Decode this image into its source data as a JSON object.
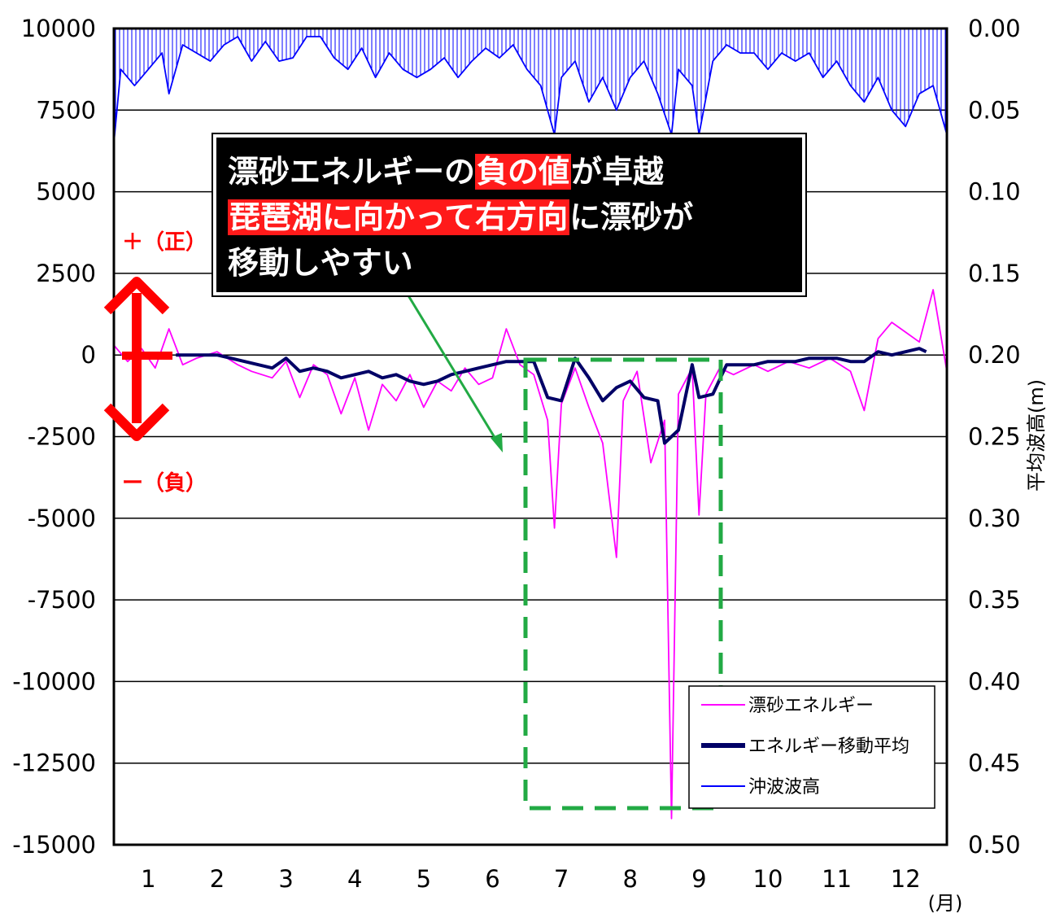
{
  "chart_data": {
    "type": "line",
    "x_ticks": [
      "1",
      "2",
      "3",
      "4",
      "5",
      "6",
      "7",
      "8",
      "9",
      "10",
      "11",
      "12"
    ],
    "x_unit": "(月)",
    "y_left_ticks": [
      "10000",
      "7500",
      "5000",
      "2500",
      "0",
      "-2500",
      "-5000",
      "-7500",
      "-10000",
      "-12500",
      "-15000"
    ],
    "y_left_range": [
      -15000,
      10000
    ],
    "y_right_ticks": [
      "0.00",
      "0.05",
      "0.10",
      "0.15",
      "0.20",
      "0.25",
      "0.30",
      "0.35",
      "0.40",
      "0.45",
      "0.50"
    ],
    "y_right_range": [
      0.5,
      0.0
    ],
    "y_right_label": "平均波高(m)",
    "grid": true,
    "legend_position": "bottom-right",
    "series": [
      {
        "name": "漂砂エネルギー",
        "color": "#ff00ff",
        "axis": "left",
        "points": [
          [
            0.5,
            300
          ],
          [
            0.7,
            -200
          ],
          [
            0.9,
            200
          ],
          [
            1.1,
            -400
          ],
          [
            1.3,
            800
          ],
          [
            1.5,
            -300
          ],
          [
            1.7,
            -100
          ],
          [
            2.0,
            100
          ],
          [
            2.3,
            -300
          ],
          [
            2.5,
            -500
          ],
          [
            2.8,
            -700
          ],
          [
            3.0,
            -200
          ],
          [
            3.2,
            -1300
          ],
          [
            3.4,
            -300
          ],
          [
            3.6,
            -600
          ],
          [
            3.8,
            -1800
          ],
          [
            4.0,
            -700
          ],
          [
            4.2,
            -2300
          ],
          [
            4.4,
            -900
          ],
          [
            4.6,
            -1400
          ],
          [
            4.8,
            -600
          ],
          [
            5.0,
            -1600
          ],
          [
            5.2,
            -800
          ],
          [
            5.4,
            -1100
          ],
          [
            5.6,
            -400
          ],
          [
            5.8,
            -900
          ],
          [
            6.0,
            -700
          ],
          [
            6.2,
            800
          ],
          [
            6.4,
            -300
          ],
          [
            6.6,
            -600
          ],
          [
            6.8,
            -2000
          ],
          [
            6.9,
            -5300
          ],
          [
            7.0,
            -1500
          ],
          [
            7.2,
            -400
          ],
          [
            7.4,
            -1600
          ],
          [
            7.6,
            -2700
          ],
          [
            7.8,
            -6200
          ],
          [
            7.9,
            -1400
          ],
          [
            8.1,
            -500
          ],
          [
            8.3,
            -3300
          ],
          [
            8.5,
            -2000
          ],
          [
            8.6,
            -14200
          ],
          [
            8.7,
            -1200
          ],
          [
            8.9,
            -400
          ],
          [
            9.0,
            -4900
          ],
          [
            9.1,
            -1200
          ],
          [
            9.3,
            -400
          ],
          [
            9.5,
            -600
          ],
          [
            9.8,
            -300
          ],
          [
            10.0,
            -500
          ],
          [
            10.3,
            -200
          ],
          [
            10.6,
            -400
          ],
          [
            10.9,
            -100
          ],
          [
            11.2,
            -500
          ],
          [
            11.4,
            -1700
          ],
          [
            11.6,
            500
          ],
          [
            11.8,
            1000
          ],
          [
            12.0,
            700
          ],
          [
            12.2,
            400
          ],
          [
            12.4,
            2000
          ],
          [
            12.6,
            -500
          ]
        ]
      },
      {
        "name": "エネルギー移動平均",
        "color": "#000066",
        "axis": "left",
        "points": [
          [
            1.4,
            0
          ],
          [
            1.6,
            0
          ],
          [
            1.8,
            0
          ],
          [
            2.0,
            0
          ],
          [
            2.2,
            -100
          ],
          [
            2.4,
            -200
          ],
          [
            2.6,
            -300
          ],
          [
            2.8,
            -400
          ],
          [
            3.0,
            -100
          ],
          [
            3.2,
            -500
          ],
          [
            3.4,
            -400
          ],
          [
            3.6,
            -500
          ],
          [
            3.8,
            -700
          ],
          [
            4.0,
            -600
          ],
          [
            4.2,
            -500
          ],
          [
            4.4,
            -700
          ],
          [
            4.6,
            -600
          ],
          [
            4.8,
            -800
          ],
          [
            5.0,
            -900
          ],
          [
            5.2,
            -800
          ],
          [
            5.4,
            -600
          ],
          [
            5.6,
            -500
          ],
          [
            5.8,
            -400
          ],
          [
            6.0,
            -300
          ],
          [
            6.2,
            -200
          ],
          [
            6.4,
            -200
          ],
          [
            6.6,
            -200
          ],
          [
            6.8,
            -1300
          ],
          [
            7.0,
            -1400
          ],
          [
            7.2,
            -100
          ],
          [
            7.4,
            -700
          ],
          [
            7.6,
            -1400
          ],
          [
            7.8,
            -1000
          ],
          [
            8.0,
            -800
          ],
          [
            8.2,
            -1300
          ],
          [
            8.4,
            -1400
          ],
          [
            8.5,
            -2700
          ],
          [
            8.7,
            -2300
          ],
          [
            8.9,
            -300
          ],
          [
            9.0,
            -1300
          ],
          [
            9.2,
            -1200
          ],
          [
            9.4,
            -300
          ],
          [
            9.6,
            -300
          ],
          [
            9.8,
            -300
          ],
          [
            10.0,
            -200
          ],
          [
            10.2,
            -200
          ],
          [
            10.4,
            -200
          ],
          [
            10.6,
            -100
          ],
          [
            10.8,
            -100
          ],
          [
            11.0,
            -100
          ],
          [
            11.2,
            -200
          ],
          [
            11.4,
            -200
          ],
          [
            11.6,
            100
          ],
          [
            11.8,
            0
          ],
          [
            12.0,
            100
          ],
          [
            12.2,
            200
          ],
          [
            12.3,
            100
          ]
        ]
      },
      {
        "name": "沖波波高",
        "color": "#0000ff",
        "axis": "right",
        "points": [
          [
            0.5,
            0.07
          ],
          [
            0.6,
            0.025
          ],
          [
            0.8,
            0.035
          ],
          [
            1.0,
            0.025
          ],
          [
            1.2,
            0.015
          ],
          [
            1.3,
            0.04
          ],
          [
            1.5,
            0.01
          ],
          [
            1.7,
            0.015
          ],
          [
            1.9,
            0.02
          ],
          [
            2.1,
            0.01
          ],
          [
            2.3,
            0.005
          ],
          [
            2.5,
            0.02
          ],
          [
            2.7,
            0.008
          ],
          [
            2.9,
            0.02
          ],
          [
            3.1,
            0.018
          ],
          [
            3.3,
            0.005
          ],
          [
            3.5,
            0.005
          ],
          [
            3.7,
            0.018
          ],
          [
            3.9,
            0.025
          ],
          [
            4.1,
            0.012
          ],
          [
            4.3,
            0.03
          ],
          [
            4.5,
            0.015
          ],
          [
            4.7,
            0.025
          ],
          [
            4.9,
            0.03
          ],
          [
            5.1,
            0.025
          ],
          [
            5.3,
            0.018
          ],
          [
            5.5,
            0.03
          ],
          [
            5.7,
            0.02
          ],
          [
            5.9,
            0.012
          ],
          [
            6.1,
            0.018
          ],
          [
            6.3,
            0.01
          ],
          [
            6.5,
            0.025
          ],
          [
            6.7,
            0.035
          ],
          [
            6.9,
            0.065
          ],
          [
            7.0,
            0.03
          ],
          [
            7.2,
            0.02
          ],
          [
            7.4,
            0.045
          ],
          [
            7.6,
            0.03
          ],
          [
            7.8,
            0.05
          ],
          [
            8.0,
            0.03
          ],
          [
            8.2,
            0.02
          ],
          [
            8.4,
            0.04
          ],
          [
            8.6,
            0.065
          ],
          [
            8.7,
            0.025
          ],
          [
            8.9,
            0.035
          ],
          [
            9.0,
            0.065
          ],
          [
            9.2,
            0.02
          ],
          [
            9.4,
            0.01
          ],
          [
            9.6,
            0.015
          ],
          [
            9.8,
            0.015
          ],
          [
            10.0,
            0.025
          ],
          [
            10.2,
            0.015
          ],
          [
            10.4,
            0.02
          ],
          [
            10.6,
            0.015
          ],
          [
            10.8,
            0.03
          ],
          [
            11.0,
            0.02
          ],
          [
            11.2,
            0.035
          ],
          [
            11.4,
            0.045
          ],
          [
            11.6,
            0.03
          ],
          [
            11.8,
            0.05
          ],
          [
            12.0,
            0.06
          ],
          [
            12.2,
            0.04
          ],
          [
            12.4,
            0.035
          ],
          [
            12.6,
            0.065
          ]
        ]
      }
    ]
  },
  "annotations": {
    "plus_label": "＋（正）",
    "minus_label": "ー（負）",
    "callout": {
      "line1_a": "漂砂エネルギーの",
      "line1_hl": "負の値",
      "line1_b": "が卓越",
      "line2_hl": "琵琶湖に向かって右方向",
      "line2_b": "に漂砂が",
      "line3": "移動しやすい"
    }
  },
  "colors": {
    "highlight_box": "#22aa44",
    "arrow": "#ff0000"
  }
}
